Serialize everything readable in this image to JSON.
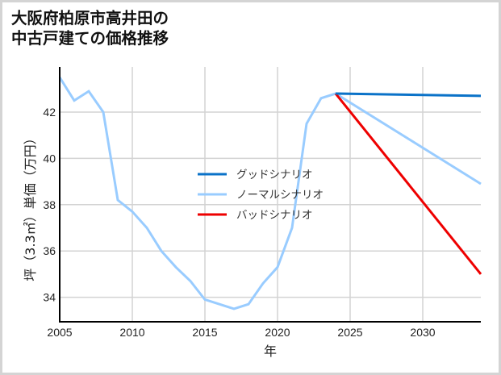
{
  "title": {
    "line1": "大阪府柏原市高井田の",
    "line2": "中古戸建ての価格推移"
  },
  "colors": {
    "good": "#0a72c8",
    "normal": "#99ccff",
    "bad": "#ee0000",
    "grid": "#d3d3d3",
    "axis": "#000000"
  },
  "chart_data": {
    "type": "line",
    "title": "大阪府柏原市高井田の中古戸建ての価格推移",
    "xlabel": "年",
    "ylabel": "坪（3.3㎡）単価（万円）",
    "xlim": [
      2005,
      2034
    ],
    "ylim": [
      33,
      44
    ],
    "x_ticks": [
      2005,
      2010,
      2015,
      2020,
      2025,
      2030
    ],
    "y_ticks": [
      34,
      36,
      38,
      40,
      42
    ],
    "grid": true,
    "legend_position": "center",
    "series": [
      {
        "name": "グッドシナリオ",
        "color": "#0a72c8",
        "x": [
          2024,
          2034
        ],
        "values": [
          42.8,
          42.7
        ]
      },
      {
        "name": "ノーマルシナリオ",
        "color": "#99ccff",
        "x": [
          2005,
          2006,
          2007,
          2008,
          2009,
          2010,
          2011,
          2012,
          2013,
          2014,
          2015,
          2016,
          2017,
          2018,
          2019,
          2020,
          2021,
          2022,
          2023,
          2024,
          2034
        ],
        "values": [
          43.5,
          42.5,
          42.9,
          42.0,
          38.2,
          37.7,
          37.0,
          36.0,
          35.3,
          34.7,
          33.9,
          33.7,
          33.5,
          33.7,
          34.6,
          35.3,
          37.0,
          41.5,
          42.6,
          42.8,
          38.9
        ]
      },
      {
        "name": "バッドシナリオ",
        "color": "#ee0000",
        "x": [
          2024,
          2034
        ],
        "values": [
          42.8,
          35.0
        ]
      }
    ]
  },
  "axes": {
    "x_label": "年",
    "y_label": "坪（3.3㎡）単価（万円）",
    "x_ticks": [
      "2005",
      "2010",
      "2015",
      "2020",
      "2025",
      "2030"
    ],
    "y_ticks": [
      "34",
      "36",
      "38",
      "40",
      "42"
    ]
  },
  "legend": [
    {
      "label": "グッドシナリオ",
      "color": "#0a72c8"
    },
    {
      "label": "ノーマルシナリオ",
      "color": "#99ccff"
    },
    {
      "label": "バッドシナリオ",
      "color": "#ee0000"
    }
  ]
}
